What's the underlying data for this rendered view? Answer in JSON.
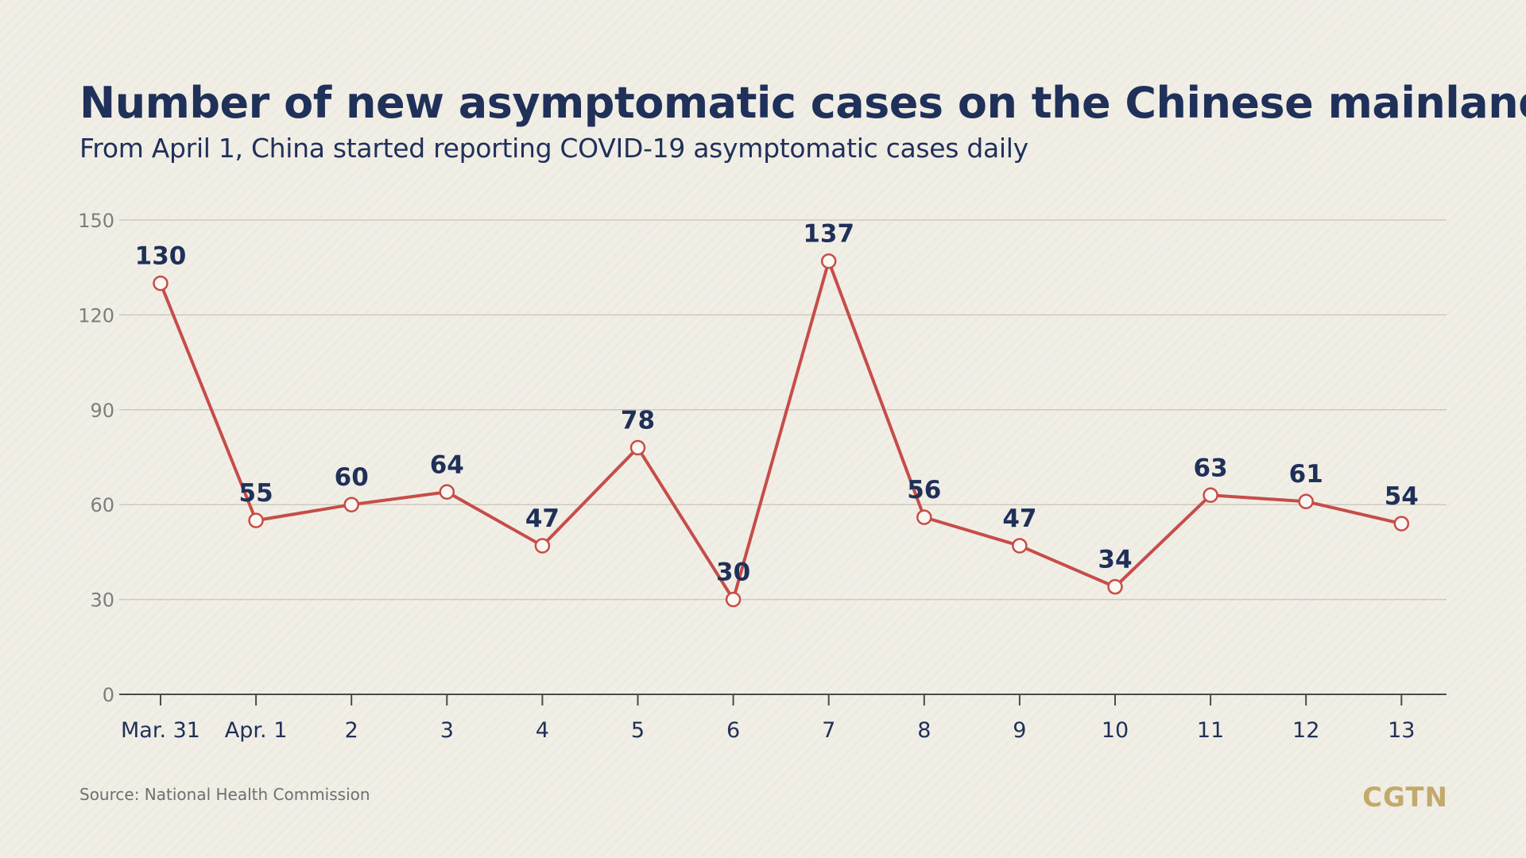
{
  "source": "Source: National Health Commission",
  "logo": "CGTN",
  "colors": {
    "background": "#f1eee6",
    "title": "#1f3059",
    "line": "#c64d48",
    "grid": "#cfcac0",
    "logo": "#c2aa6b"
  },
  "chart_data": {
    "type": "line",
    "title": "Number of new asymptomatic cases on the Chinese mainland",
    "subtitle": "From April 1, China started reporting COVID-19 asymptomatic cases daily",
    "categories": [
      "Mar. 31",
      "Apr. 1",
      "2",
      "3",
      "4",
      "5",
      "6",
      "7",
      "8",
      "9",
      "10",
      "11",
      "12",
      "13"
    ],
    "values": [
      130,
      55,
      60,
      64,
      47,
      78,
      30,
      137,
      56,
      47,
      34,
      63,
      61,
      54
    ],
    "yticks": [
      0,
      30,
      60,
      90,
      120,
      150
    ],
    "ylim": [
      0,
      150
    ],
    "grid": true,
    "data_labels": true,
    "legend": "none"
  }
}
